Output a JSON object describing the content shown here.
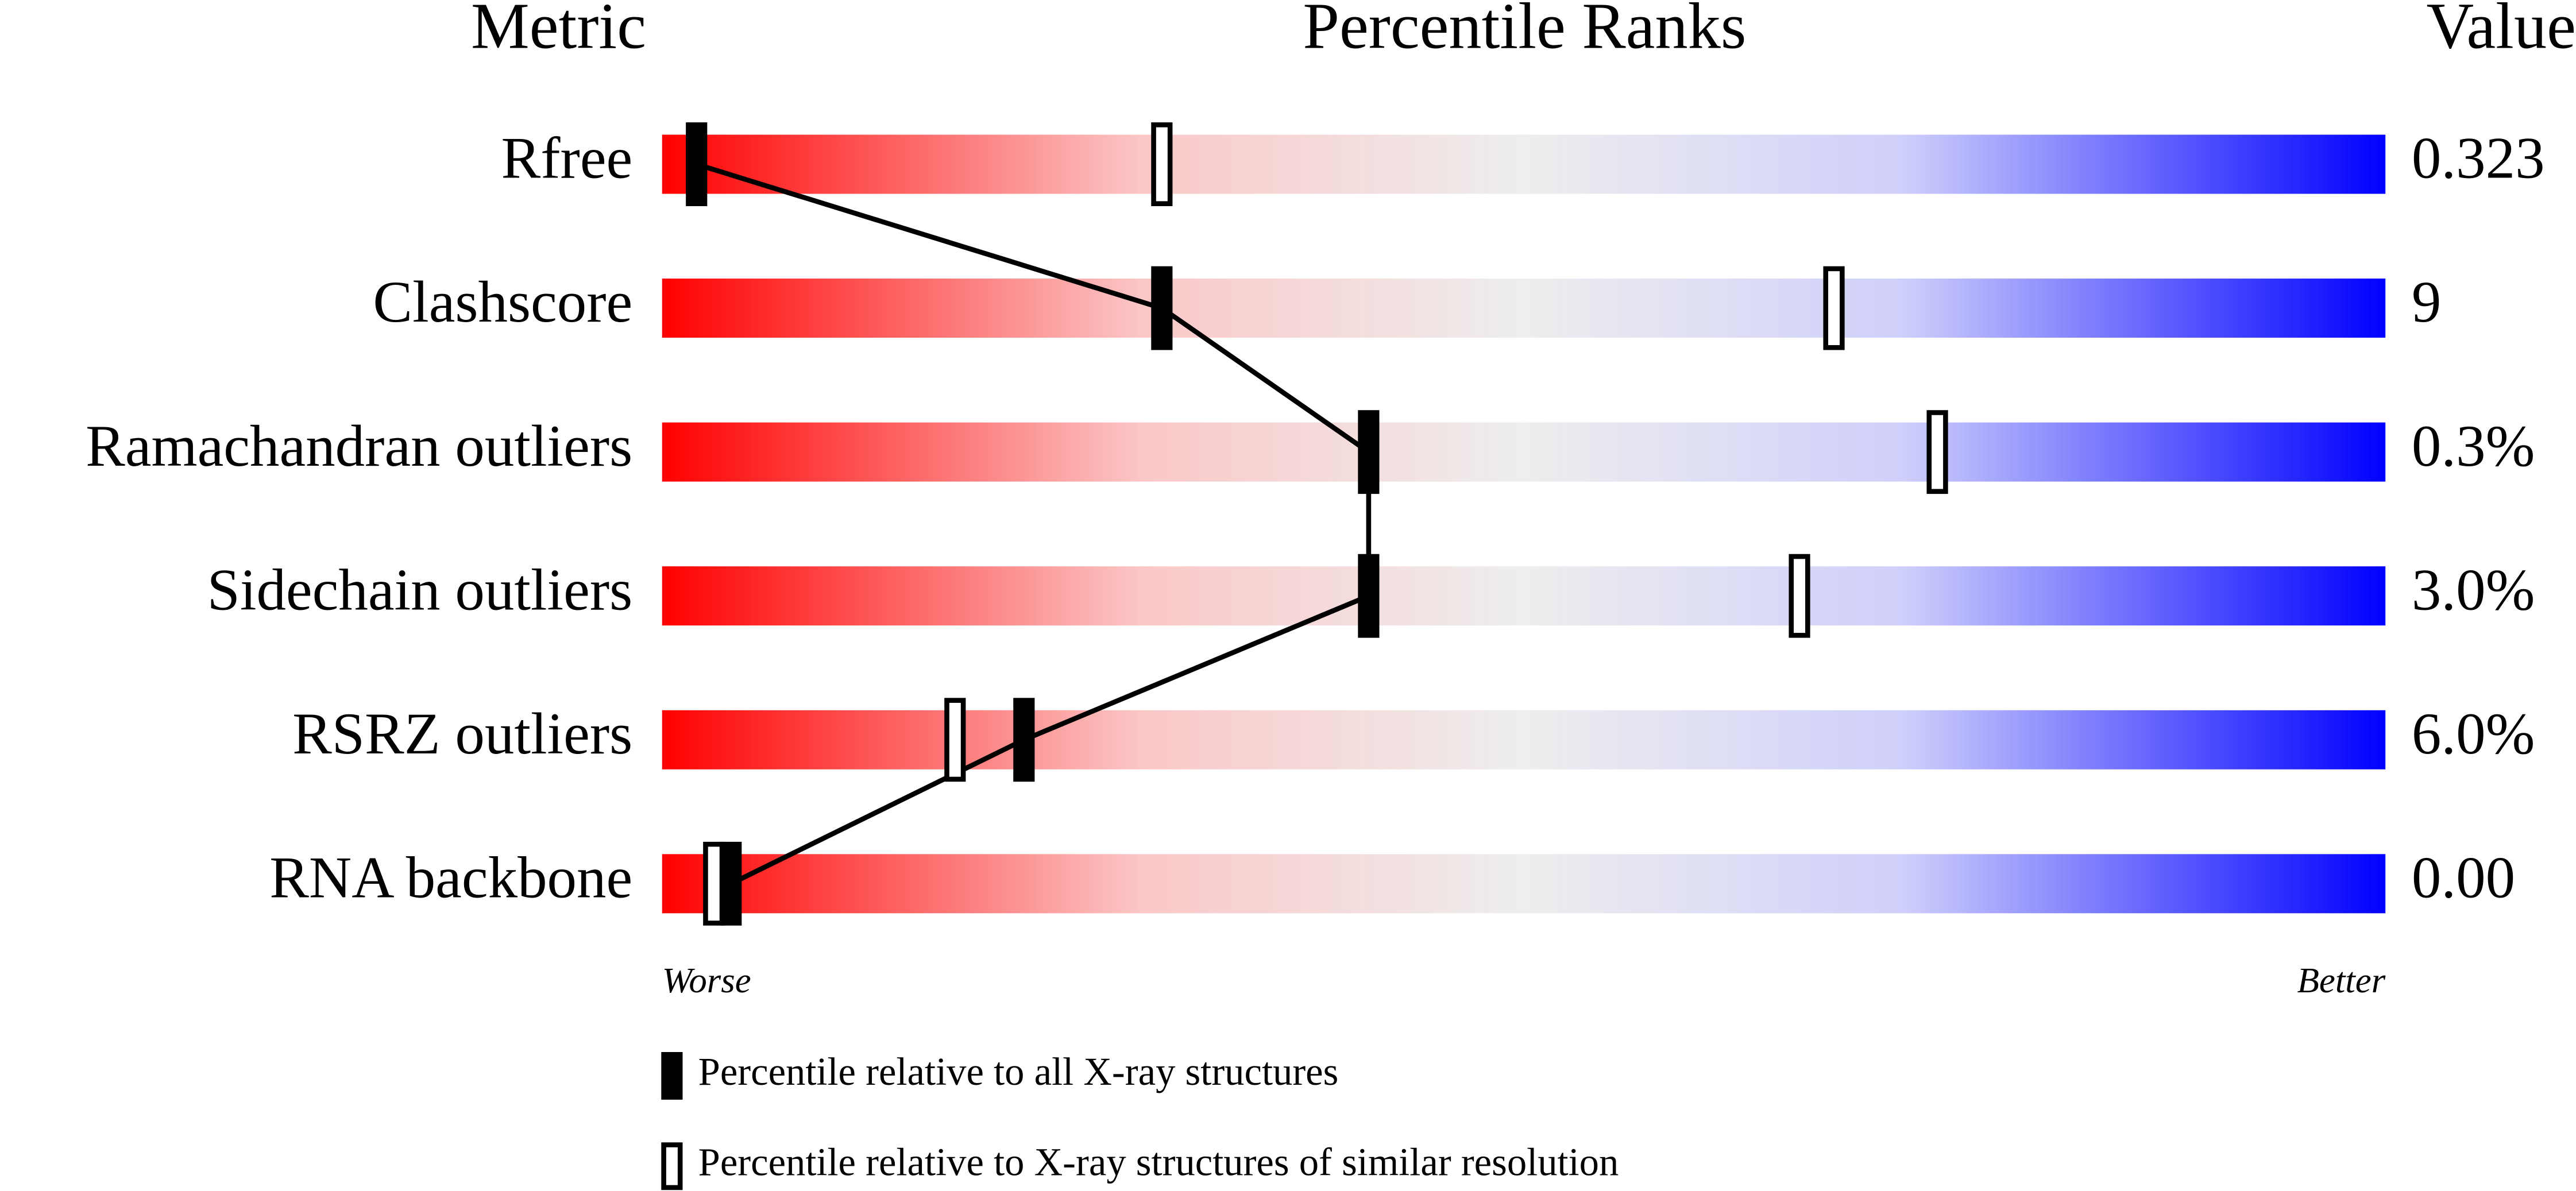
{
  "chart_data": {
    "type": "slider",
    "column_headers": [
      "Metric",
      "Percentile Ranks",
      "Value"
    ],
    "categories": [
      "Rfree",
      "Clashscore",
      "Ramachandran outliers",
      "Sidechain outliers",
      "RSRZ outliers",
      "RNA backbone"
    ],
    "metric_values": [
      "0.323",
      "9",
      "0.3%",
      "3.0%",
      "6.0%",
      "0.00"
    ],
    "series": [
      {
        "name": "Percentile relative to all X-ray structures",
        "color": "#000000",
        "values": [
          2,
          29,
          41,
          41,
          21,
          4
        ]
      },
      {
        "name": "Percentile relative to X-ray structures of similar resolution",
        "color": "#ffffff",
        "values": [
          29,
          68,
          74,
          66,
          17,
          3
        ]
      }
    ],
    "xlim": [
      0,
      100
    ],
    "axis_labels": [
      "Worse",
      "Better"
    ],
    "gradient": [
      "#ff0000",
      "#eeeeee",
      "#0000ff"
    ]
  }
}
